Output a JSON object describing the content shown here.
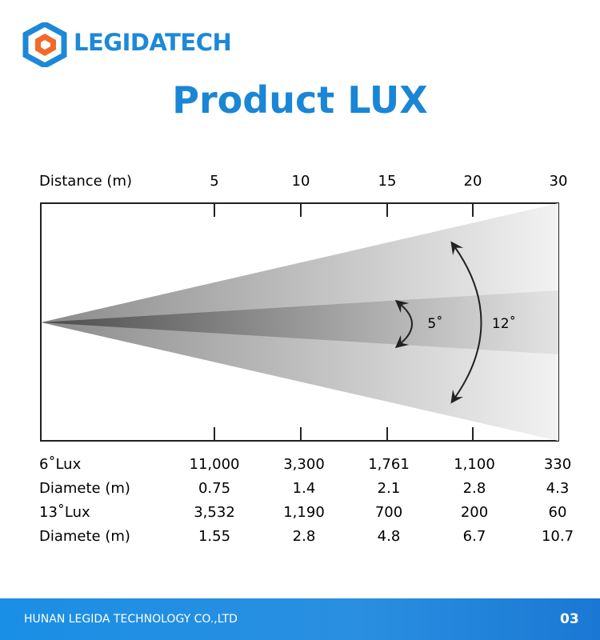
{
  "header": {
    "brand": "LEGIDATECH",
    "title": "Product LUX"
  },
  "diagram": {
    "distance_label": "Distance (m)",
    "distances": [
      5,
      10,
      15,
      20,
      30
    ],
    "inner_angle": "5˚",
    "outer_angle": "12˚"
  },
  "table": {
    "rows": [
      [
        "6˚Lux",
        "11,000",
        "3,300",
        "1,761",
        "1,100",
        "330"
      ],
      [
        "Diamete (m)",
        "0.75",
        "1.4",
        "2.1",
        "2.8",
        "4.3"
      ],
      [
        "13˚Lux",
        "3,532",
        "1,190",
        "700",
        "200",
        "60"
      ],
      [
        "Diamete (m)",
        "1.55",
        "2.8",
        "4.8",
        "6.7",
        "10.7"
      ]
    ]
  },
  "footer": {
    "company": "HUNAN LEGIDA TECHNOLOGY CO.,LTD",
    "page": "03"
  }
}
